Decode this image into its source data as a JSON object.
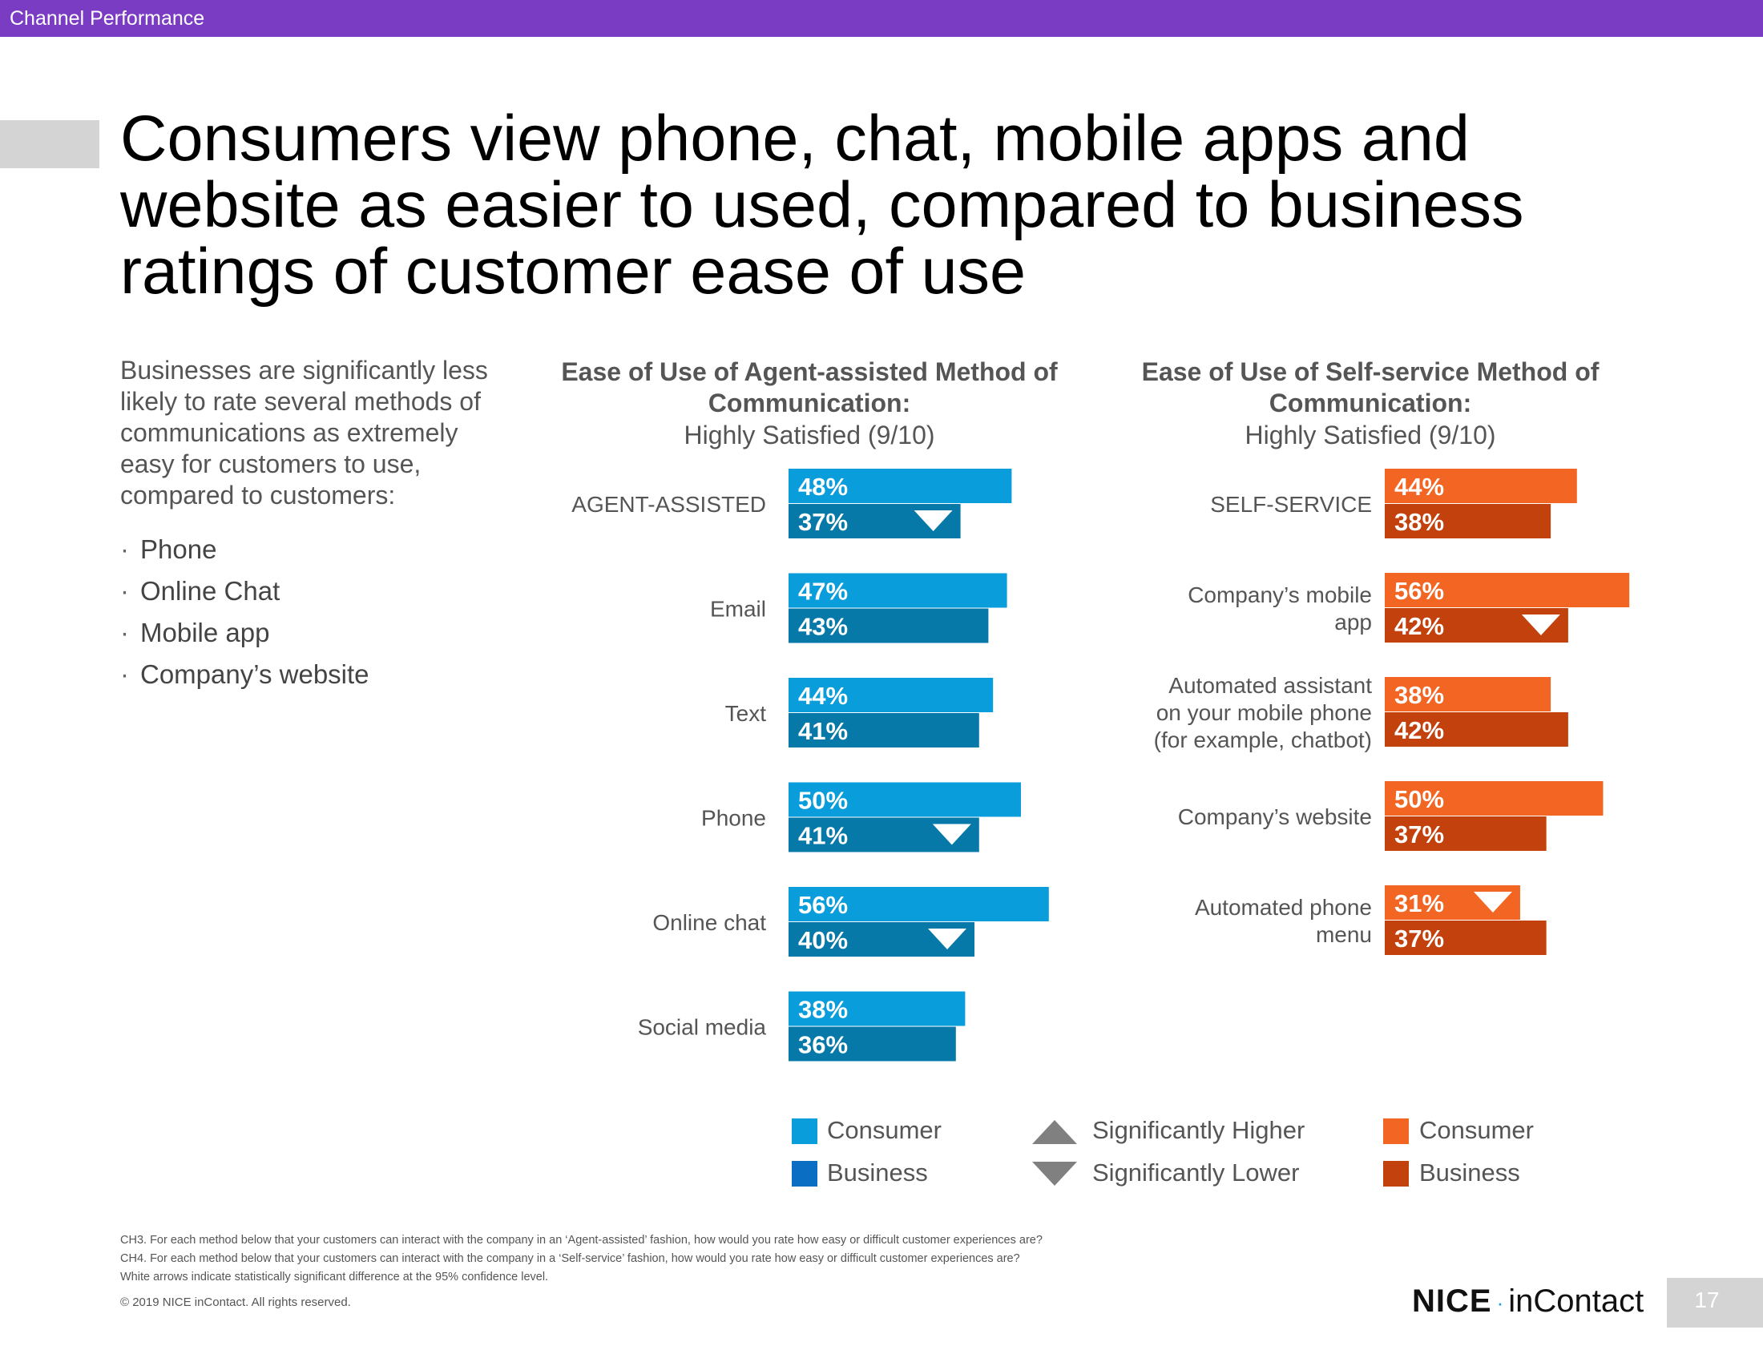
{
  "header": {
    "section": "Channel Performance"
  },
  "title": "Consumers view phone, chat, mobile apps and website as easier to used, compared to business ratings of customer ease of use",
  "intro": "Businesses are significantly less likely to rate several methods of communications as extremely easy for customers to use, compared to customers:",
  "bullets": [
    "Phone",
    "Online Chat",
    "Mobile app",
    "Company’s website"
  ],
  "bullet_marker": "·",
  "panels": {
    "left": {
      "heading": "Ease of Use of Agent-assisted Method of Communication:",
      "subheading": "Highly Satisfied (9/10)"
    },
    "right": {
      "heading": "Ease of Use of Self-service Method of Communication:",
      "subheading": "Highly Satisfied (9/10)"
    }
  },
  "chart_data": [
    {
      "type": "bar",
      "orientation": "horizontal",
      "title": "Ease of Use of Agent-assisted Method of Communication:",
      "subtitle": "Highly Satisfied (9/10)",
      "categories": [
        "AGENT-ASSISTED",
        "Email",
        "Text",
        "Phone",
        "Online chat",
        "Social media"
      ],
      "series": [
        {
          "name": "Consumer",
          "values": [
            48,
            47,
            44,
            50,
            56,
            38
          ],
          "color": "#0a9ddb",
          "markers": [
            "",
            "",
            "",
            "",
            "",
            ""
          ]
        },
        {
          "name": "Business",
          "values": [
            37,
            43,
            41,
            41,
            40,
            36
          ],
          "color": "#0779a8",
          "markers": [
            "down",
            "",
            "",
            "down",
            "down",
            ""
          ]
        }
      ],
      "value_suffix": "%",
      "xlim": [
        0,
        60
      ]
    },
    {
      "type": "bar",
      "orientation": "horizontal",
      "title": "Ease of Use of Self-service Method of Communication:",
      "subtitle": "Highly Satisfied (9/10)",
      "categories": [
        [
          "SELF-SERVICE"
        ],
        [
          "Company’s  mobile",
          "app"
        ],
        [
          "Automated assistant",
          "on your mobile phone",
          "(for example,  chatbot)"
        ],
        [
          "Company’s  website"
        ],
        [
          "Automated phone",
          "menu"
        ]
      ],
      "series": [
        {
          "name": "Consumer",
          "values": [
            44,
            56,
            38,
            50,
            31
          ],
          "color": "#f26522",
          "markers": [
            "",
            "",
            "",
            "",
            "down"
          ]
        },
        {
          "name": "Business",
          "values": [
            38,
            42,
            42,
            37,
            37
          ],
          "color": "#c2410c",
          "markers": [
            "",
            "down",
            "",
            "",
            ""
          ]
        }
      ],
      "value_suffix": "%",
      "xlim": [
        0,
        60
      ]
    }
  ],
  "legend": {
    "left": [
      {
        "label": "Consumer",
        "color": "#0a9ddb"
      },
      {
        "label": "Business",
        "color": "#0a6fc2"
      }
    ],
    "middle": [
      {
        "label": "Significantly Higher",
        "icon": "triangle-up-icon"
      },
      {
        "label": "Significantly Lower",
        "icon": "triangle-down-icon"
      }
    ],
    "right": [
      {
        "label": "Consumer",
        "color": "#f26522"
      },
      {
        "label": "Business",
        "color": "#c2410c"
      }
    ]
  },
  "notes": [
    "CH3. For each method below that your customers can interact with the company in an ‘Agent-assisted’ fashion, how would you rate how easy or difficult customer experiences are?",
    "CH4. For each method below that your customers can interact with the company in a ‘Self-service’ fashion, how would you rate how easy or difficult customer experiences are?",
    "White arrows indicate statistically significant difference at the 95% confidence level."
  ],
  "copyright": "© 2019 NICE inContact. All rights reserved.",
  "logo": {
    "brand": "NICE",
    "separator": "·",
    "product": "inContact"
  },
  "page_number": "17"
}
